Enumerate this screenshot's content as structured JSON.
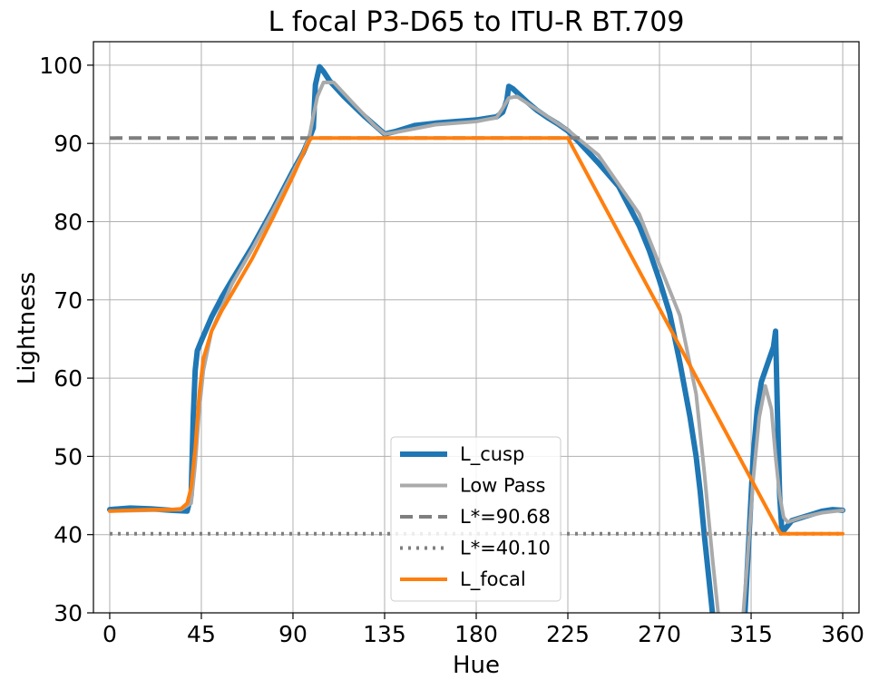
{
  "chart_data": {
    "type": "line",
    "title": "L focal P3-D65 to ITU-R BT.709",
    "xlabel": "Hue",
    "ylabel": "Lightness",
    "xlim": [
      -8,
      368
    ],
    "ylim": [
      30,
      103
    ],
    "xticks": [
      0,
      45,
      90,
      135,
      180,
      225,
      270,
      315,
      360
    ],
    "yticks": [
      30,
      40,
      50,
      60,
      70,
      80,
      90,
      100
    ],
    "grid": true,
    "legend_position": "lower-center",
    "series": [
      {
        "name": "L_cusp",
        "color": "#1f77b4",
        "style": "solid",
        "x": [
          0,
          10,
          20,
          30,
          38,
          40,
          41,
          42,
          43,
          45,
          50,
          55,
          60,
          70,
          80,
          90,
          95,
          98,
          100,
          101,
          103,
          105,
          108,
          115,
          125,
          135,
          140,
          150,
          160,
          170,
          180,
          190,
          193,
          195,
          196,
          198,
          200,
          205,
          210,
          215,
          220,
          225,
          230,
          240,
          250,
          260,
          265,
          270,
          275,
          280,
          285,
          288,
          290,
          292,
          294,
          296,
          298,
          300,
          310,
          312,
          314,
          316,
          318,
          320,
          322,
          324,
          326,
          327,
          328,
          329,
          330,
          331,
          335,
          340,
          345,
          350,
          355,
          360
        ],
        "y": [
          43.2,
          43.4,
          43.3,
          43.1,
          43.0,
          45.0,
          55.0,
          61.0,
          63.5,
          64.8,
          67.8,
          70.3,
          72.5,
          76.8,
          81.5,
          86.5,
          88.8,
          90.6,
          92.0,
          97.5,
          99.8,
          99.2,
          98.0,
          96.0,
          93.5,
          91.2,
          91.5,
          92.3,
          92.6,
          92.8,
          93.0,
          93.4,
          94.0,
          95.5,
          97.3,
          97.0,
          96.5,
          95.3,
          94.2,
          93.3,
          92.5,
          91.6,
          90.3,
          87.5,
          84.5,
          79.5,
          76.3,
          72.5,
          68.3,
          62.0,
          55.0,
          50.0,
          45.5,
          40.0,
          35.0,
          30.0,
          26.0,
          22.0,
          22.0,
          30.0,
          40.0,
          50.0,
          56.0,
          59.5,
          61.0,
          62.5,
          64.0,
          66.0,
          55.0,
          45.0,
          41.0,
          40.5,
          41.8,
          42.2,
          42.6,
          43.0,
          43.2,
          43.1
        ]
      },
      {
        "name": "Low Pass",
        "color": "#aaaaaa",
        "style": "solid",
        "x": [
          0,
          20,
          35,
          40,
          42,
          44,
          46,
          50,
          60,
          70,
          80,
          90,
          95,
          98,
          100,
          102,
          105,
          110,
          120,
          130,
          135,
          140,
          160,
          180,
          190,
          193,
          196,
          200,
          210,
          225,
          240,
          260,
          270,
          280,
          288,
          292,
          296,
          300,
          310,
          313,
          316,
          319,
          322,
          325,
          327,
          329,
          331,
          333,
          340,
          350,
          360
        ],
        "y": [
          43.0,
          43.1,
          43.2,
          44.0,
          49.0,
          56.0,
          61.0,
          66.0,
          72.0,
          76.5,
          81.3,
          86.3,
          88.8,
          90.8,
          93.5,
          96.0,
          97.8,
          97.8,
          95.0,
          92.3,
          91.2,
          91.4,
          92.4,
          92.8,
          93.3,
          94.5,
          95.8,
          96.0,
          94.3,
          91.7,
          88.5,
          81.0,
          74.5,
          68.0,
          58.0,
          48.0,
          37.0,
          27.0,
          26.0,
          36.0,
          47.0,
          55.0,
          59.0,
          56.0,
          50.0,
          45.0,
          42.2,
          41.6,
          42.2,
          42.8,
          43.1
        ]
      },
      {
        "name": "L*=90.68",
        "color": "#7f7f7f",
        "style": "dashed",
        "x": [
          0,
          360
        ],
        "y": [
          90.68,
          90.68
        ]
      },
      {
        "name": "L*=40.10",
        "color": "#7f7f7f",
        "style": "dotted",
        "x": [
          0,
          360
        ],
        "y": [
          40.1,
          40.1
        ]
      },
      {
        "name": "L_focal",
        "color": "#ff7f0e",
        "style": "solid",
        "x": [
          0,
          10,
          20,
          30,
          35,
          38,
          40,
          42,
          44,
          46,
          50,
          55,
          60,
          70,
          80,
          90,
          95,
          98,
          99,
          100,
          225,
          329,
          330,
          360
        ],
        "y": [
          43.0,
          43.1,
          43.2,
          43.2,
          43.3,
          44.0,
          46.0,
          51.0,
          58.0,
          62.5,
          66.0,
          68.6,
          70.8,
          75.3,
          80.4,
          85.8,
          88.7,
          90.3,
          90.68,
          90.68,
          90.68,
          40.3,
          40.1,
          40.1
        ]
      }
    ]
  }
}
